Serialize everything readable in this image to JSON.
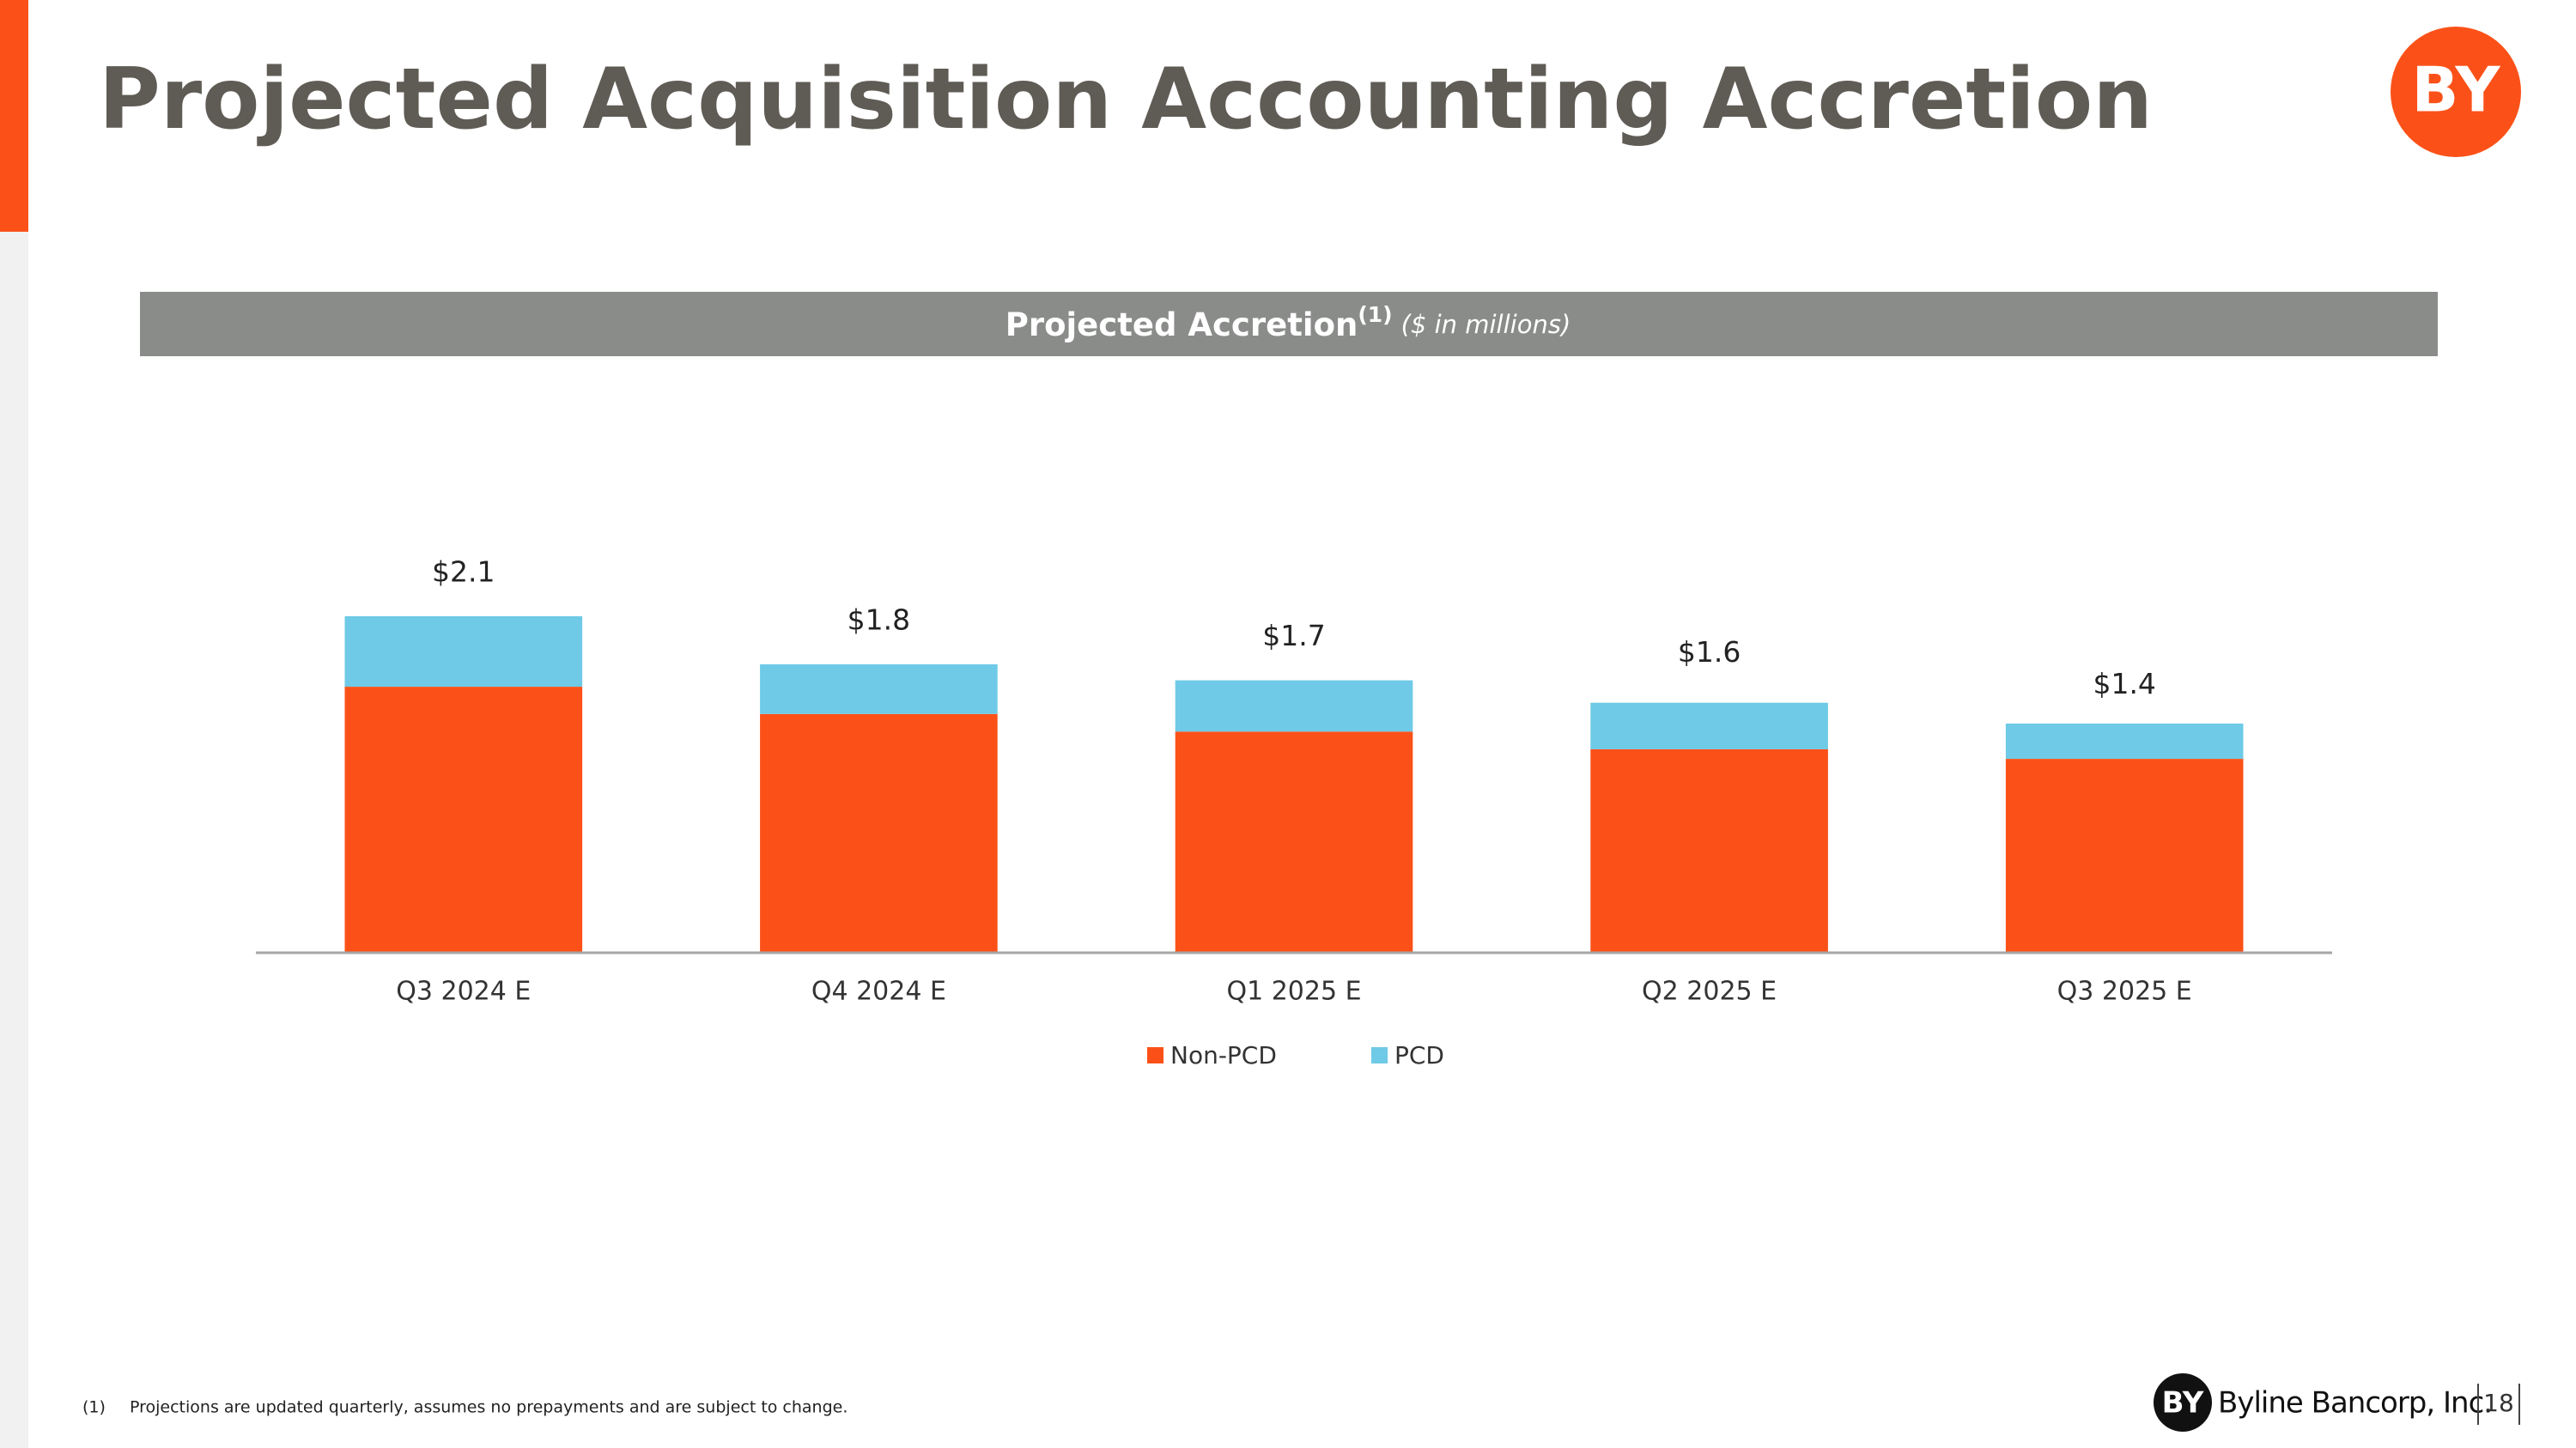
{
  "header": {
    "title": "Projected Acquisition Accounting Accretion",
    "logo": "BY"
  },
  "chart_data": {
    "type": "stacked_bar",
    "title": "Projected Accretion",
    "title_note": "(1)",
    "subtitle": "($ in millions)",
    "categories": [
      "Q3 2024 E",
      "Q4 2024 E",
      "Q1 2025 E",
      "Q2 2025 E",
      "Q3 2025 E"
    ],
    "series": [
      {
        "name": "Non-PCD",
        "color": "#fb5118",
        "values": [
          1.66,
          1.49,
          1.38,
          1.27,
          1.21
        ]
      },
      {
        "name": "PCD",
        "color": "#6ecae6",
        "values": [
          0.44,
          0.31,
          0.32,
          0.29,
          0.22
        ]
      }
    ],
    "totals": {
      "values": [
        2.1,
        1.8,
        1.7,
        1.6,
        1.4
      ],
      "value_labels": [
        "$2.1",
        "$1.8",
        "$1.7",
        "$1.6",
        "$1.4"
      ]
    },
    "legend": "bottom"
  },
  "footnote": {
    "marker": "(1)",
    "text": "Projections are updated quarterly, assumes no prepayments and are subject to change."
  },
  "footer": {
    "logo": "BY",
    "brand": "Byline Bancorp, Inc.",
    "page": "18"
  }
}
